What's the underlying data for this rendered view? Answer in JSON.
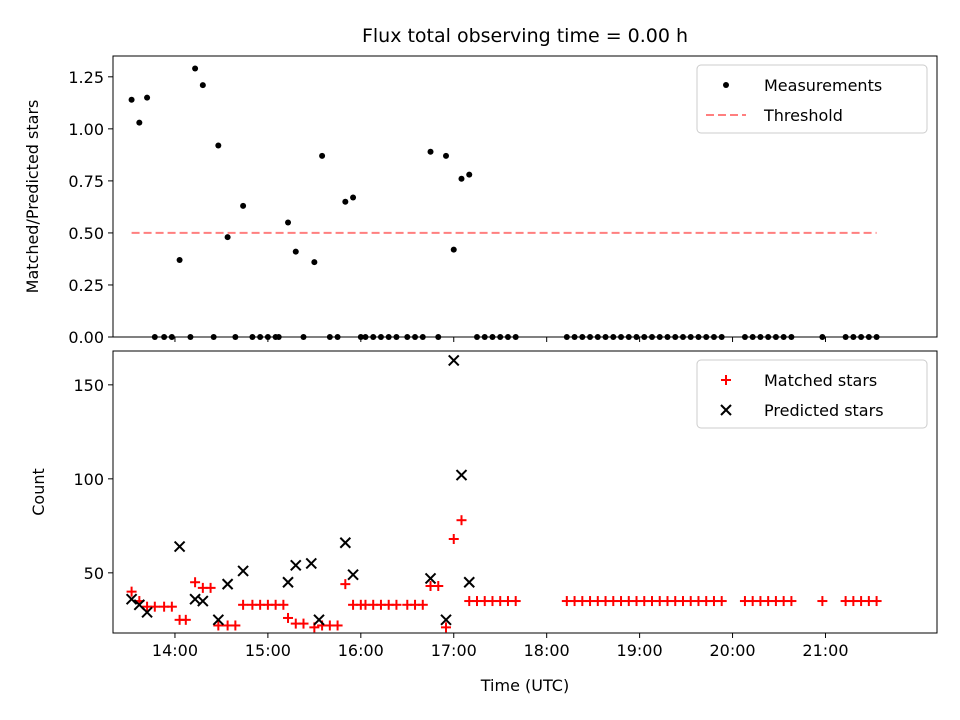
{
  "figure": {
    "title": "Flux total observing time = 0.00 h",
    "xlabel": "Time (UTC)"
  },
  "chart_data": [
    {
      "type": "scatter",
      "ylabel": "Matched/Predicted stars",
      "ylim": [
        0,
        1.35
      ],
      "yticks": [
        0.0,
        0.25,
        0.5,
        0.75,
        1.0,
        1.25
      ],
      "ytick_labels": [
        "0.00",
        "0.25",
        "0.50",
        "0.75",
        "1.00",
        "1.25"
      ],
      "xlim": [
        "13:20",
        "22:12"
      ],
      "xtick_labels": [
        "14:00",
        "15:00",
        "16:00",
        "17:00",
        "18:00",
        "19:00",
        "20:00",
        "21:00"
      ],
      "legend": "top-right",
      "series": [
        {
          "name": "Measurements",
          "marker": "dot",
          "color": "#000000",
          "x": [
            "13:32",
            "13:37",
            "13:42",
            "13:47",
            "13:53",
            "13:58",
            "14:03",
            "14:10",
            "14:13",
            "14:18",
            "14:25",
            "14:28",
            "14:34",
            "14:39",
            "14:44",
            "14:50",
            "14:55",
            "15:00",
            "15:05",
            "15:07",
            "15:13",
            "15:18",
            "15:23",
            "15:30",
            "15:35",
            "15:40",
            "15:45",
            "15:50",
            "15:55",
            "16:00",
            "16:03",
            "16:08",
            "16:13",
            "16:18",
            "16:23",
            "16:30",
            "16:35",
            "16:40",
            "16:45",
            "16:50",
            "16:55",
            "17:00",
            "17:05",
            "17:10",
            "17:15",
            "17:20",
            "17:25",
            "17:30",
            "17:35",
            "17:40",
            "18:13",
            "18:18",
            "18:23",
            "18:28",
            "18:33",
            "18:38",
            "18:43",
            "18:48",
            "18:53",
            "18:58",
            "19:03",
            "19:08",
            "19:13",
            "19:18",
            "19:23",
            "19:28",
            "19:33",
            "19:38",
            "19:43",
            "19:48",
            "19:53",
            "20:08",
            "20:13",
            "20:18",
            "20:23",
            "20:28",
            "20:33",
            "20:38",
            "20:58",
            "21:13",
            "21:18",
            "21:23",
            "21:28",
            "21:33"
          ],
          "y": [
            1.14,
            1.03,
            1.15,
            0,
            0,
            0,
            0.37,
            0,
            1.29,
            1.21,
            0,
            0.92,
            0.48,
            0,
            0.63,
            0,
            0,
            0,
            0,
            0,
            0.55,
            0.41,
            0,
            0.36,
            0.87,
            0,
            0,
            0.65,
            0.67,
            0,
            0,
            0,
            0,
            0,
            0,
            0,
            0,
            0,
            0.89,
            0,
            0.87,
            0.42,
            0.76,
            0.78,
            0,
            0,
            0,
            0,
            0,
            0,
            0,
            0,
            0,
            0,
            0,
            0,
            0,
            0,
            0,
            0,
            0,
            0,
            0,
            0,
            0,
            0,
            0,
            0,
            0,
            0,
            0,
            0,
            0,
            0,
            0,
            0,
            0,
            0,
            0,
            0,
            0,
            0,
            0,
            0
          ]
        },
        {
          "name": "Threshold",
          "style": "dashed",
          "color": "#ff7f7f",
          "x": [
            "13:32",
            "21:33"
          ],
          "y": [
            0.5,
            0.5
          ]
        }
      ]
    },
    {
      "type": "scatter",
      "ylabel": "Count",
      "ylim": [
        18,
        168
      ],
      "yticks": [
        50,
        100,
        150
      ],
      "ytick_labels": [
        "50",
        "100",
        "150"
      ],
      "xlim": [
        "13:20",
        "22:12"
      ],
      "xtick_labels": [
        "14:00",
        "15:00",
        "16:00",
        "17:00",
        "18:00",
        "19:00",
        "20:00",
        "21:00"
      ],
      "legend": "top-right",
      "series": [
        {
          "name": "Matched stars",
          "marker": "plus",
          "color": "#ff0000",
          "x": [
            "13:32",
            "13:37",
            "13:42",
            "13:47",
            "13:53",
            "13:58",
            "14:03",
            "14:07",
            "14:13",
            "14:18",
            "14:23",
            "14:28",
            "14:34",
            "14:39",
            "14:44",
            "14:50",
            "14:55",
            "15:00",
            "15:05",
            "15:10",
            "15:13",
            "15:18",
            "15:23",
            "15:30",
            "15:35",
            "15:40",
            "15:45",
            "15:50",
            "15:55",
            "16:00",
            "16:03",
            "16:08",
            "16:13",
            "16:18",
            "16:23",
            "16:30",
            "16:35",
            "16:40",
            "16:45",
            "16:50",
            "16:55",
            "17:00",
            "17:05",
            "17:10",
            "17:15",
            "17:20",
            "17:25",
            "17:30",
            "17:35",
            "17:40",
            "18:13",
            "18:18",
            "18:23",
            "18:28",
            "18:33",
            "18:38",
            "18:43",
            "18:48",
            "18:53",
            "18:58",
            "19:03",
            "19:08",
            "19:13",
            "19:18",
            "19:23",
            "19:28",
            "19:33",
            "19:38",
            "19:43",
            "19:48",
            "19:53",
            "20:08",
            "20:13",
            "20:18",
            "20:23",
            "20:28",
            "20:33",
            "20:38",
            "20:58",
            "21:13",
            "21:18",
            "21:23",
            "21:28",
            "21:33"
          ],
          "y": [
            40,
            35,
            32,
            32,
            32,
            32,
            25,
            25,
            45,
            42,
            42,
            22,
            22,
            22,
            33,
            33,
            33,
            33,
            33,
            33,
            26,
            23,
            23,
            21,
            22,
            22,
            22,
            44,
            33,
            33,
            33,
            33,
            33,
            33,
            33,
            33,
            33,
            33,
            43,
            43,
            21,
            68,
            78,
            35,
            35,
            35,
            35,
            35,
            35,
            35,
            35,
            35,
            35,
            35,
            35,
            35,
            35,
            35,
            35,
            35,
            35,
            35,
            35,
            35,
            35,
            35,
            35,
            35,
            35,
            35,
            35,
            35,
            35,
            35,
            35,
            35,
            35,
            35,
            35,
            35,
            35,
            35,
            35,
            35
          ]
        },
        {
          "name": "Predicted stars",
          "marker": "x",
          "color": "#000000",
          "x": [
            "13:32",
            "13:37",
            "13:42",
            "14:03",
            "14:13",
            "14:18",
            "14:28",
            "14:34",
            "14:44",
            "15:13",
            "15:18",
            "15:28",
            "15:33",
            "15:50",
            "15:55",
            "16:45",
            "16:55",
            "17:00",
            "17:05",
            "17:10"
          ],
          "y": [
            36,
            33,
            29,
            64,
            36,
            35,
            25,
            44,
            51,
            45,
            54,
            55,
            25,
            66,
            49,
            47,
            25,
            163,
            102,
            45
          ]
        }
      ]
    }
  ]
}
